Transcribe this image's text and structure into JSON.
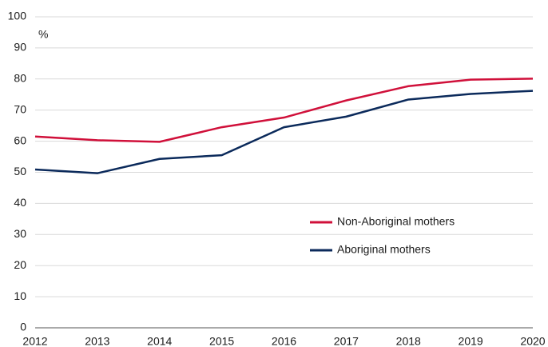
{
  "chart_data": {
    "type": "line",
    "y_unit_label": "%",
    "x": [
      2012,
      2013,
      2014,
      2015,
      2016,
      2017,
      2018,
      2019,
      2020
    ],
    "xlim": [
      2012,
      2020
    ],
    "series": [
      {
        "name": "Non-Aboriginal mothers",
        "color": "#d0103a",
        "values": [
          61.5,
          60.3,
          59.8,
          64.5,
          67.6,
          73.1,
          77.7,
          79.8,
          80.1
        ]
      },
      {
        "name": "Aboriginal mothers",
        "color": "#0b2a5b",
        "values": [
          50.9,
          49.7,
          54.3,
          55.5,
          64.5,
          67.9,
          73.4,
          75.2,
          76.2
        ]
      }
    ],
    "ylim": [
      0,
      100
    ],
    "yticks": [
      0,
      10,
      20,
      30,
      40,
      50,
      60,
      70,
      80,
      90,
      100
    ],
    "grid": true
  }
}
